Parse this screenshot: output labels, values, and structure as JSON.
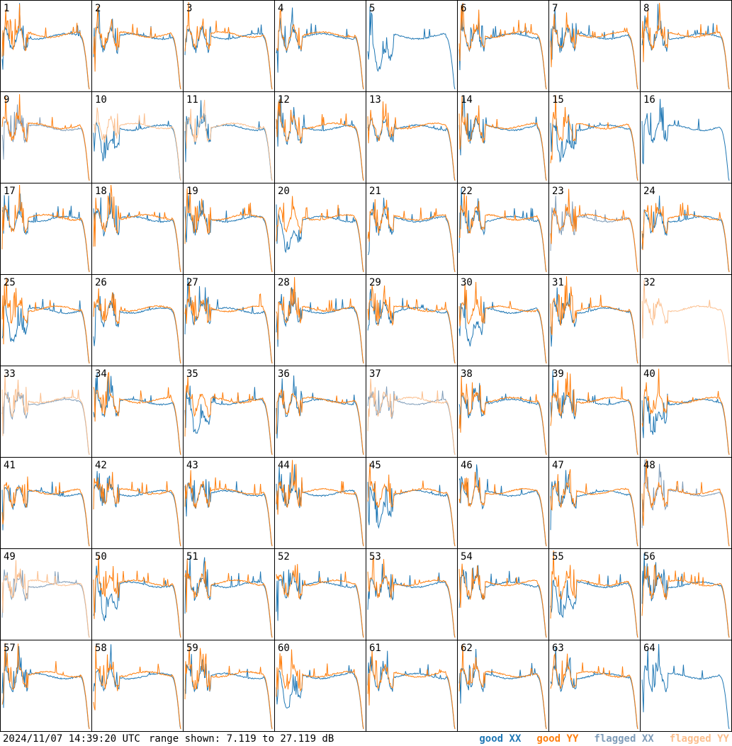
{
  "chart_data": {
    "type": "line",
    "panels": [
      "1",
      "2",
      "3",
      "4",
      "5",
      "6",
      "7",
      "8",
      "9",
      "10",
      "11",
      "12",
      "13",
      "14",
      "15",
      "16",
      "17",
      "18",
      "19",
      "20",
      "21",
      "22",
      "23",
      "24",
      "25",
      "26",
      "27",
      "28",
      "29",
      "30",
      "31",
      "32",
      "33",
      "34",
      "35",
      "36",
      "37",
      "38",
      "39",
      "40",
      "41",
      "42",
      "43",
      "44",
      "45",
      "46",
      "47",
      "48",
      "49",
      "50",
      "51",
      "52",
      "53",
      "54",
      "55",
      "56",
      "57",
      "58",
      "59",
      "60",
      "61",
      "62",
      "63",
      "64"
    ],
    "range_db": [
      7.119,
      27.119
    ],
    "series": [
      {
        "name": "good XX",
        "color": "#1f77b4"
      },
      {
        "name": "good YY",
        "color": "#ff7f0e"
      },
      {
        "name": "flagged XX",
        "color": "#7f9cb8"
      },
      {
        "name": "flagged YY",
        "color": "#fbbf8e"
      }
    ],
    "flagged_panels": {
      "xx": [
        9,
        23,
        33,
        37,
        48,
        49
      ],
      "yy": [
        10,
        11,
        32,
        33,
        37,
        49
      ]
    },
    "missing_panels": {
      "xx": [
        32
      ],
      "yy": [
        5,
        16,
        64
      ]
    }
  },
  "footer": {
    "timestamp": "2024/11/07 14:39:20 UTC",
    "range_text": "range shown: 7.119 to 27.119 dB"
  },
  "legend": {
    "good_xx": {
      "label": "good XX",
      "color": "#1f77b4"
    },
    "good_yy": {
      "label": "good YY",
      "color": "#ff7f0e"
    },
    "flagged_xx": {
      "label": "flagged XX",
      "color": "#7f9cb8"
    },
    "flagged_yy": {
      "label": "flagged YY",
      "color": "#fbbf8e"
    }
  }
}
